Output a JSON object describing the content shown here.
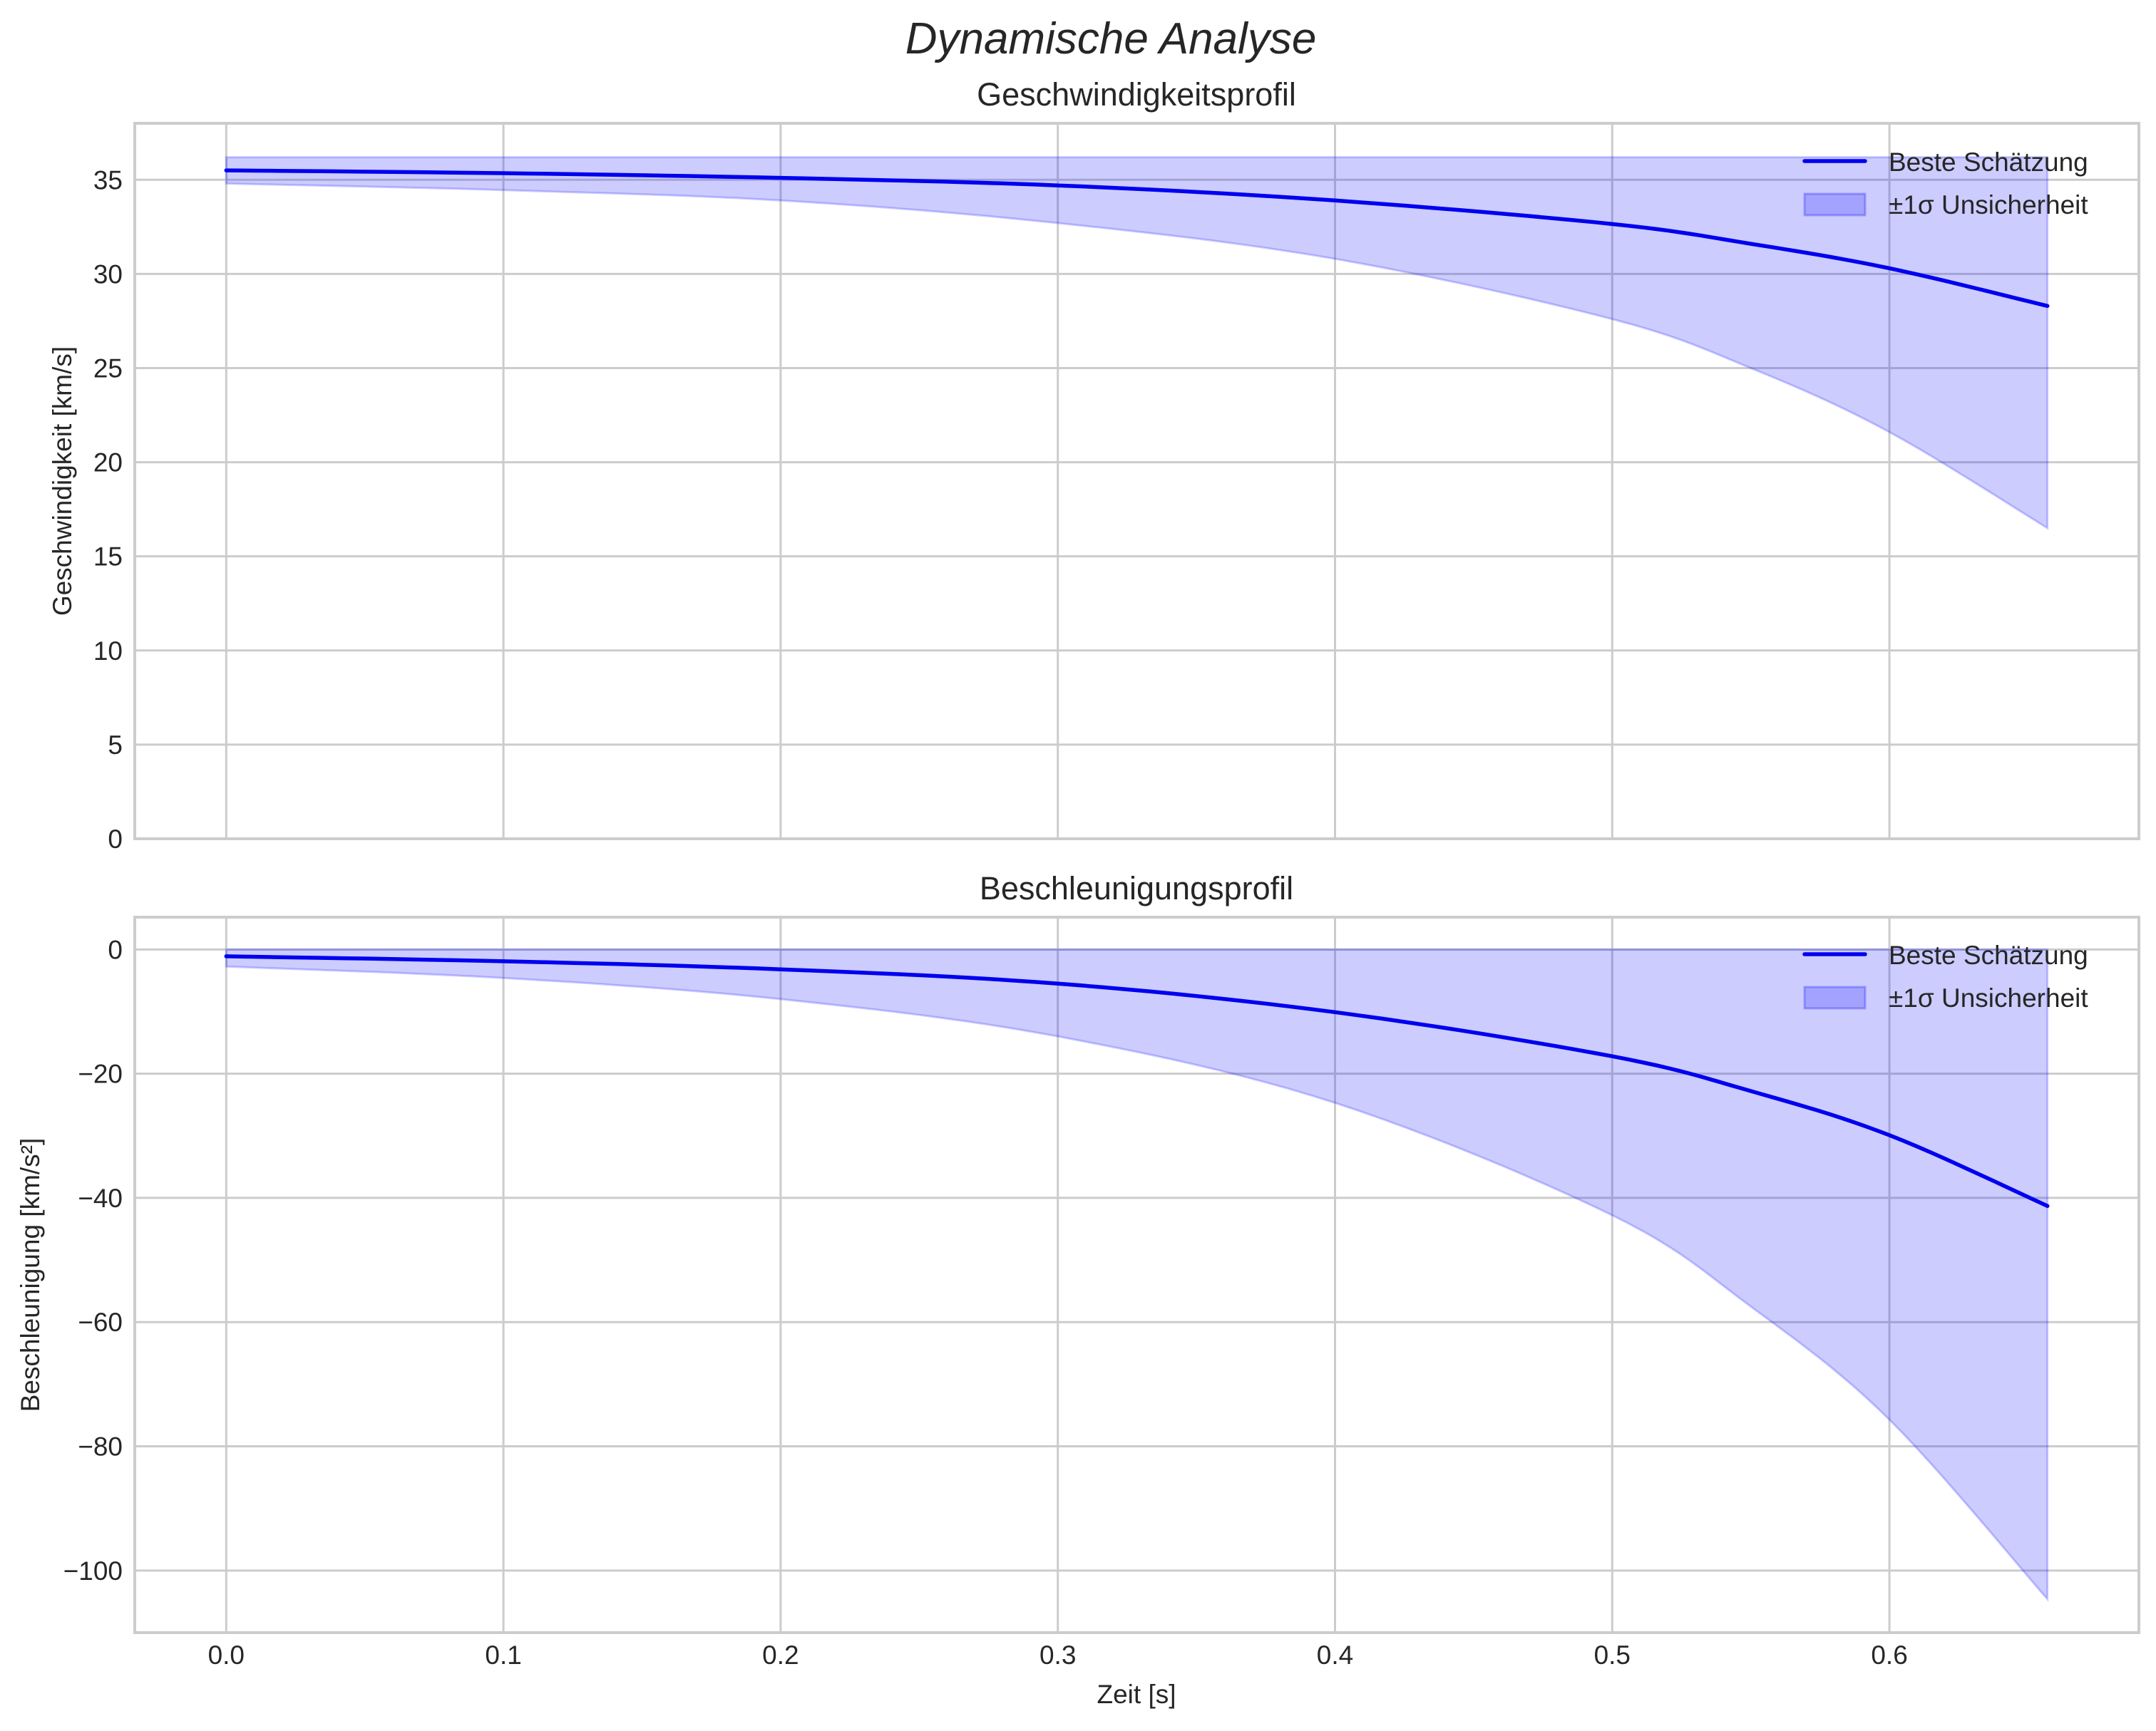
{
  "figure": {
    "title": "Dynamische Analyse"
  },
  "chart_data": [
    {
      "type": "line",
      "title": "Geschwindigkeitsprofil",
      "xlabel": "",
      "ylabel": "Geschwindigkeit [km/s]",
      "xlim": [
        -0.033,
        0.69
      ],
      "ylim": [
        0,
        38
      ],
      "xticks": [
        "0.0",
        "0.1",
        "0.2",
        "0.3",
        "0.4",
        "0.5",
        "0.6"
      ],
      "xtick_values": [
        0.0,
        0.1,
        0.2,
        0.3,
        0.4,
        0.5,
        0.6
      ],
      "show_xtick_labels": false,
      "yticks": [
        "0",
        "5",
        "10",
        "15",
        "20",
        "25",
        "30",
        "35"
      ],
      "ytick_values": [
        0,
        5,
        10,
        15,
        20,
        25,
        30,
        35
      ],
      "grid": true,
      "legend_position": "upper right",
      "x": [
        0.0,
        0.1,
        0.2,
        0.3,
        0.4,
        0.5,
        0.55,
        0.6,
        0.657
      ],
      "series": [
        {
          "name": "Beste Schätzung",
          "kind": "line",
          "color": "#0000ee",
          "values": [
            35.5,
            35.35,
            35.1,
            34.7,
            33.9,
            32.65,
            31.6,
            30.3,
            28.3
          ]
        },
        {
          "name": "±1σ Unsicherheit",
          "kind": "band",
          "color": "#0000ff",
          "alpha": 0.2,
          "upper": [
            36.2,
            36.2,
            36.2,
            36.2,
            36.2,
            36.2,
            36.2,
            36.2,
            36.2
          ],
          "lower": [
            34.8,
            34.45,
            33.9,
            32.7,
            30.8,
            27.6,
            25.0,
            21.6,
            16.5
          ]
        }
      ]
    },
    {
      "type": "line",
      "title": "Beschleunigungsprofil",
      "xlabel": "Zeit [s]",
      "ylabel": "Beschleunigung [km/s²]",
      "xlim": [
        -0.033,
        0.69
      ],
      "ylim": [
        -110,
        5.2
      ],
      "xticks": [
        "0.0",
        "0.1",
        "0.2",
        "0.3",
        "0.4",
        "0.5",
        "0.6"
      ],
      "xtick_values": [
        0.0,
        0.1,
        0.2,
        0.3,
        0.4,
        0.5,
        0.6
      ],
      "show_xtick_labels": true,
      "yticks": [
        "−100",
        "−80",
        "−60",
        "−40",
        "−20",
        "0"
      ],
      "ytick_values": [
        -100,
        -80,
        -60,
        -40,
        -20,
        0
      ],
      "grid": true,
      "legend_position": "upper right",
      "x": [
        0.0,
        0.1,
        0.2,
        0.3,
        0.4,
        0.5,
        0.55,
        0.6,
        0.657
      ],
      "series": [
        {
          "name": "Beste Schätzung",
          "kind": "line",
          "color": "#0000ee",
          "values": [
            -1.1,
            -1.9,
            -3.2,
            -5.5,
            -10.1,
            -17.2,
            -22.8,
            -29.9,
            -41.3
          ]
        },
        {
          "name": "±1σ Unsicherheit",
          "kind": "band",
          "color": "#0000ff",
          "alpha": 0.2,
          "upper": [
            0,
            0,
            0,
            0,
            0,
            0,
            0,
            0,
            0
          ],
          "lower": [
            -2.75,
            -4.6,
            -8.0,
            -14.0,
            -24.7,
            -42.8,
            -57.5,
            -75.7,
            -104.6
          ]
        }
      ]
    }
  ],
  "legend": {
    "line_label": "Beste Schätzung",
    "band_label": "±1σ Unsicherheit"
  }
}
